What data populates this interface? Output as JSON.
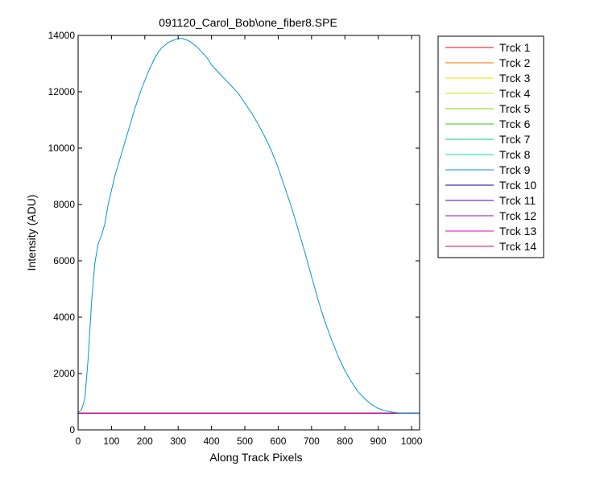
{
  "chart_data": {
    "type": "line",
    "title": "091120_Carol_Bob\\one_fiber8.SPE",
    "xlabel": "Along Track Pixels",
    "ylabel": "Intensity (ADU)",
    "xlim": [
      0,
      1024
    ],
    "ylim": [
      0,
      14000
    ],
    "xticks": [
      0,
      100,
      200,
      300,
      400,
      500,
      600,
      700,
      800,
      900,
      1000
    ],
    "yticks": [
      0,
      2000,
      4000,
      6000,
      8000,
      10000,
      12000,
      14000
    ],
    "grid": false,
    "legend_position": "outside-right",
    "series": [
      {
        "name": "Trck 1",
        "color": "#ff0000",
        "x": [
          0,
          1024
        ],
        "y": [
          590,
          590
        ]
      },
      {
        "name": "Trck 2",
        "color": "#ff6a00",
        "x": [
          0,
          1024
        ],
        "y": [
          590,
          590
        ]
      },
      {
        "name": "Trck 3",
        "color": "#ffd400",
        "x": [
          0,
          1024
        ],
        "y": [
          590,
          590
        ]
      },
      {
        "name": "Trck 4",
        "color": "#c6e800",
        "x": [
          0,
          1024
        ],
        "y": [
          590,
          590
        ]
      },
      {
        "name": "Trck 5",
        "color": "#7ddc00",
        "x": [
          0,
          1024
        ],
        "y": [
          590,
          590
        ]
      },
      {
        "name": "Trck 6",
        "color": "#21d400",
        "x": [
          0,
          1024
        ],
        "y": [
          590,
          590
        ]
      },
      {
        "name": "Trck 7",
        "color": "#00d58a",
        "x": [
          0,
          1024
        ],
        "y": [
          590,
          590
        ]
      },
      {
        "name": "Trck 8",
        "color": "#00dcc6",
        "x": [
          0,
          1024
        ],
        "y": [
          590,
          590
        ]
      },
      {
        "name": "Trck 9",
        "color": "#0097cf",
        "x": [
          0,
          10,
          20,
          30,
          40,
          50,
          60,
          70,
          80,
          90,
          100,
          110,
          120,
          130,
          140,
          150,
          160,
          170,
          180,
          190,
          200,
          210,
          220,
          230,
          240,
          250,
          260,
          270,
          280,
          290,
          300,
          310,
          320,
          330,
          340,
          350,
          360,
          370,
          380,
          390,
          400,
          420,
          440,
          460,
          480,
          500,
          520,
          540,
          560,
          580,
          600,
          620,
          640,
          660,
          680,
          700,
          720,
          740,
          760,
          780,
          800,
          820,
          840,
          860,
          880,
          900,
          920,
          940,
          960,
          980,
          1000,
          1024
        ],
        "y": [
          620,
          700,
          1100,
          2500,
          4500,
          5900,
          6600,
          6900,
          7300,
          8000,
          8500,
          9000,
          9400,
          9800,
          10200,
          10600,
          11000,
          11400,
          11750,
          12100,
          12400,
          12700,
          12950,
          13200,
          13400,
          13550,
          13650,
          13750,
          13800,
          13850,
          13880,
          13900,
          13860,
          13820,
          13750,
          13650,
          13550,
          13420,
          13300,
          13150,
          12950,
          12700,
          12450,
          12200,
          11950,
          11600,
          11250,
          10850,
          10400,
          9900,
          9300,
          8600,
          7900,
          7100,
          6300,
          5450,
          4600,
          3850,
          3200,
          2600,
          2100,
          1700,
          1350,
          1100,
          900,
          760,
          680,
          630,
          600,
          590,
          590,
          590
        ]
      },
      {
        "name": "Trck 10",
        "color": "#0000b8",
        "x": [
          0,
          1024
        ],
        "y": [
          590,
          590
        ]
      },
      {
        "name": "Trck 11",
        "color": "#5200cc",
        "x": [
          0,
          1024
        ],
        "y": [
          590,
          590
        ]
      },
      {
        "name": "Trck 12",
        "color": "#a000d0",
        "x": [
          0,
          1024
        ],
        "y": [
          590,
          590
        ]
      },
      {
        "name": "Trck 13",
        "color": "#e000c8",
        "x": [
          0,
          1024
        ],
        "y": [
          590,
          590
        ]
      },
      {
        "name": "Trck 14",
        "color": "#e0006e",
        "x": [
          0,
          1024
        ],
        "y": [
          590,
          590
        ]
      }
    ]
  }
}
